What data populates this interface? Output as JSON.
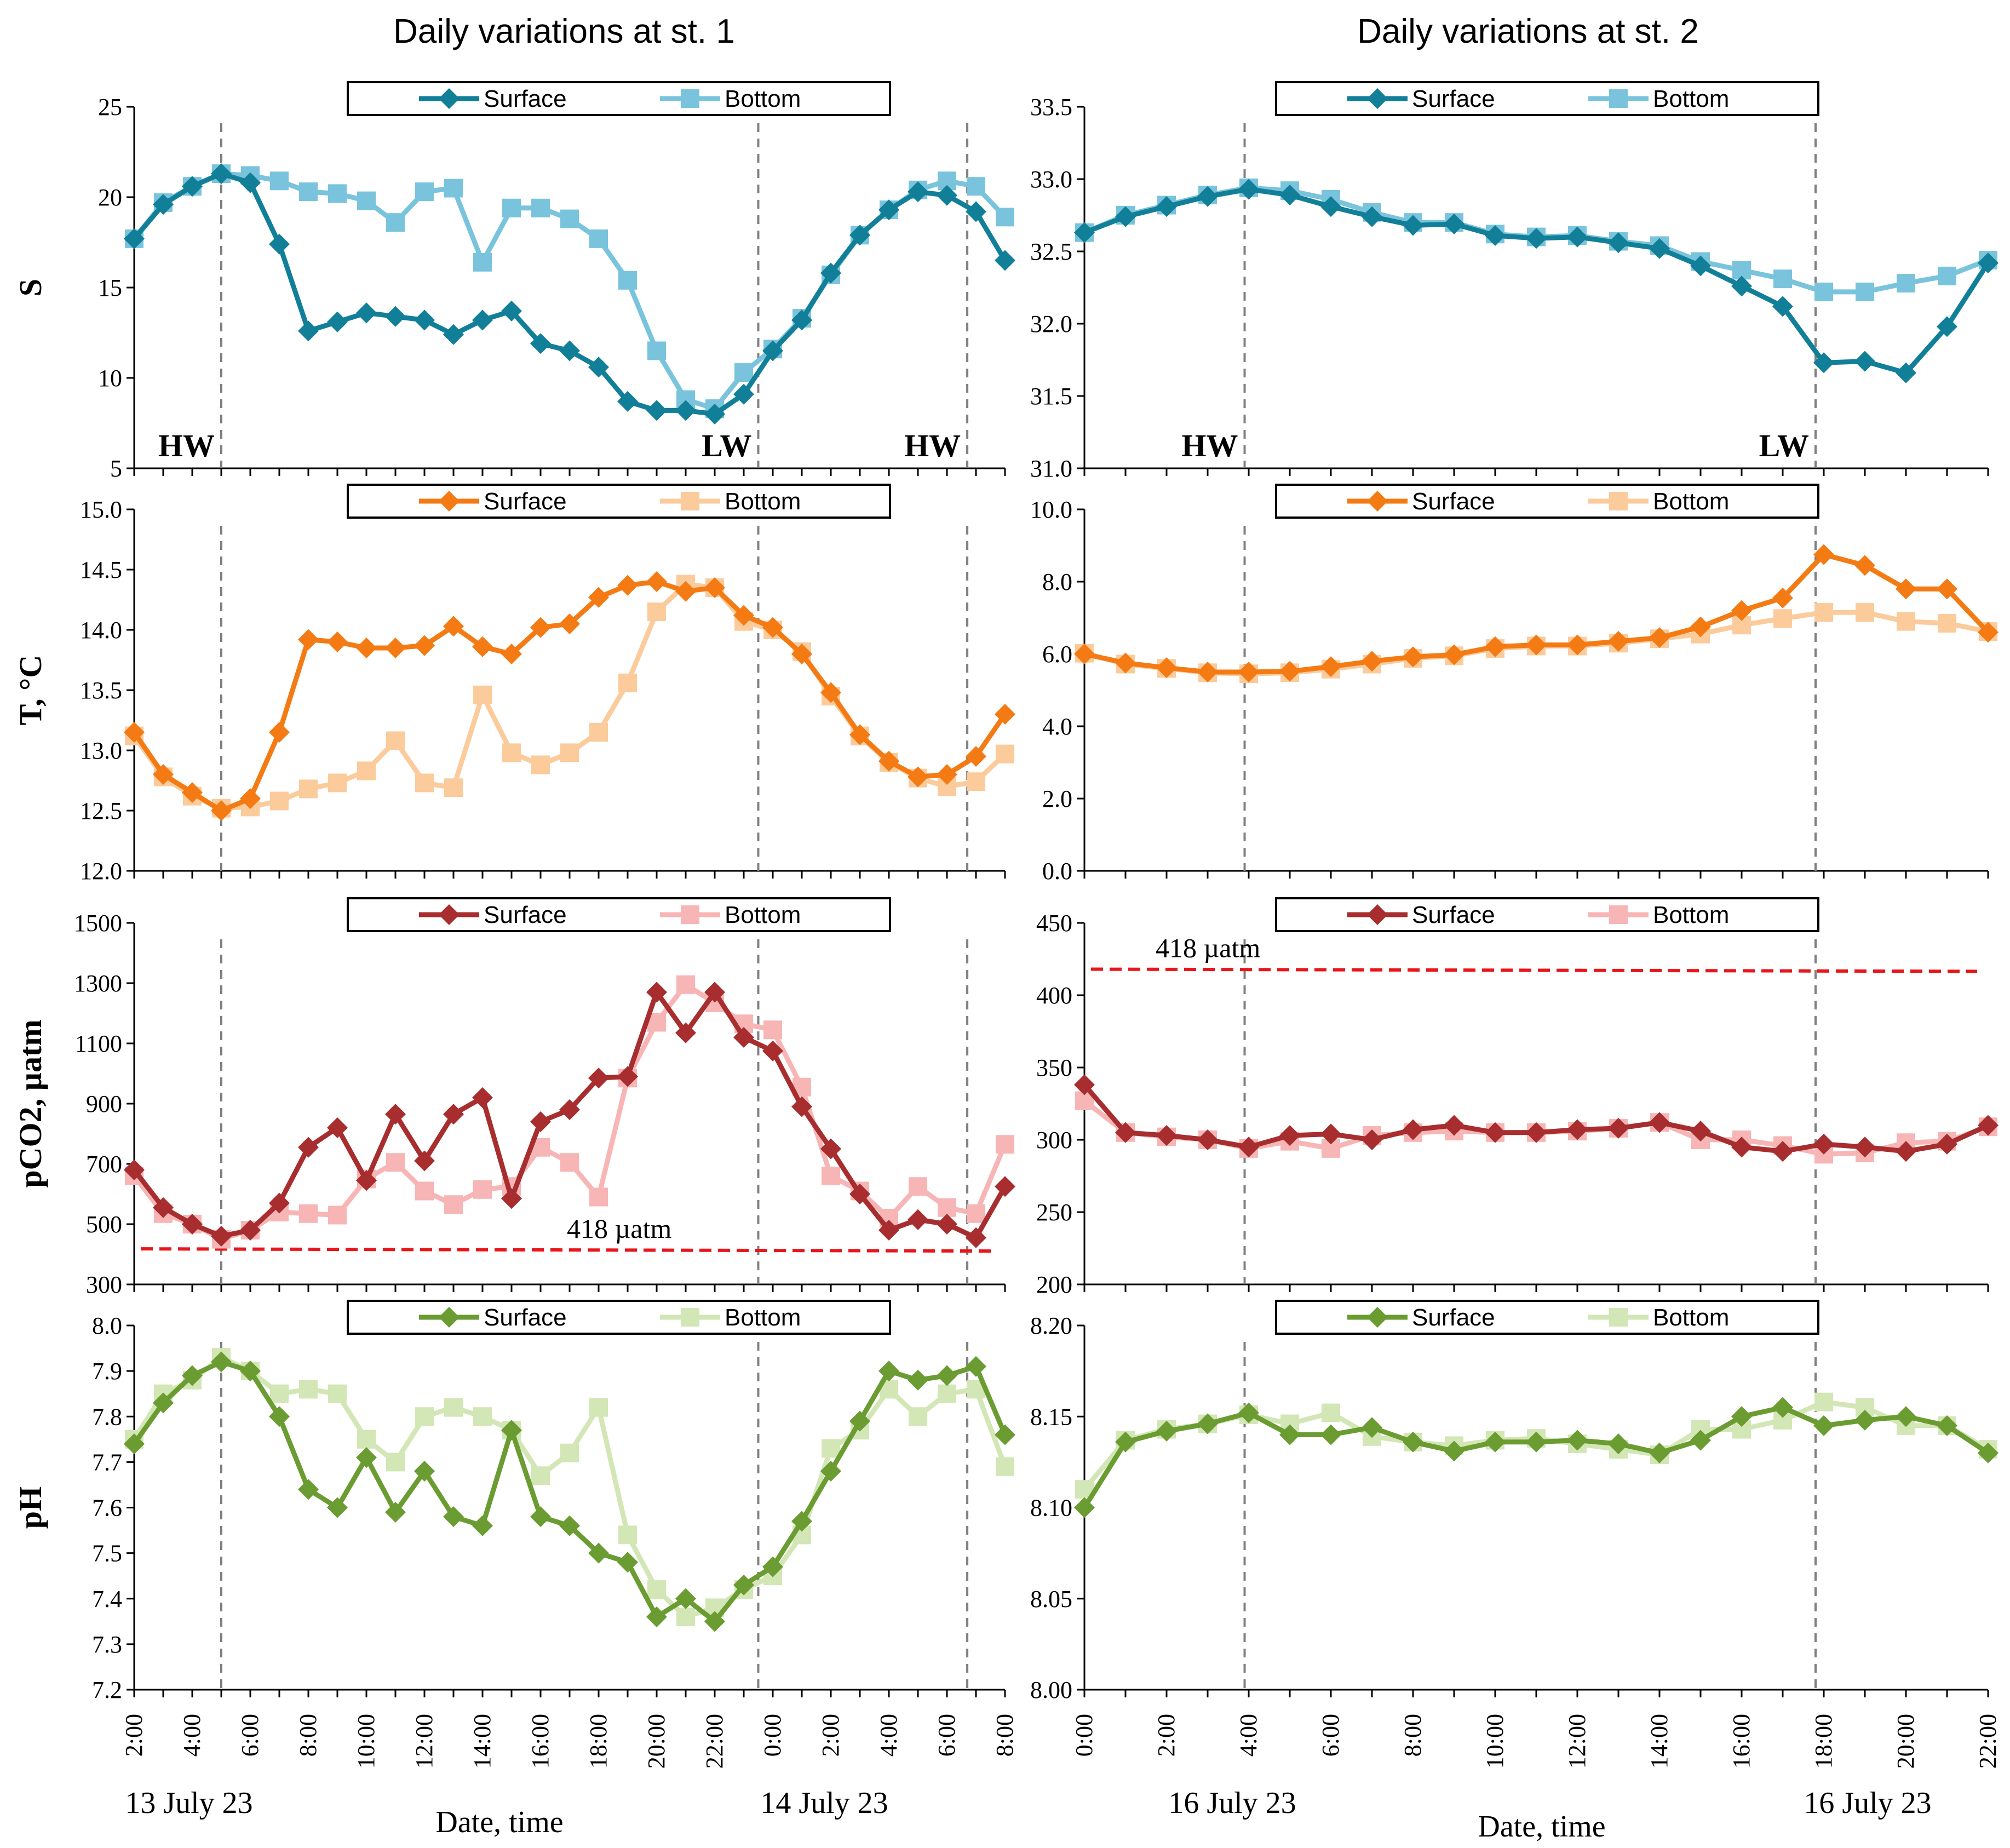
{
  "headers": {
    "st1": "Daily variations at st. 1",
    "st2": "Daily variations at st. 2"
  },
  "footer": {
    "xlabel_left": "Date, time",
    "xlabel_right": "Date, time",
    "date_left_1": "13 July 23",
    "date_left_2": "14 July 23",
    "date_right_1": "16 July 23",
    "date_right_2": "16 July 23"
  },
  "chart_data": [
    {
      "type": "line",
      "station": "st. 1",
      "row": 0,
      "ylabel": "S",
      "ylim": [
        5,
        25
      ],
      "yticks": [
        "5",
        "10",
        "15",
        "20",
        "25"
      ],
      "x": [
        "2:00",
        "3:00",
        "4:00",
        "5:00",
        "6:00",
        "7:00",
        "8:00",
        "9:00",
        "10:00",
        "11:00",
        "12:00",
        "13:00",
        "14:00",
        "15:00",
        "16:00",
        "17:00",
        "18:00",
        "19:00",
        "20:00",
        "21:00",
        "22:00",
        "23:00",
        "0:00",
        "1:00",
        "2:00",
        "3:00",
        "4:00",
        "5:00",
        "6:00",
        "7:00",
        "8:00"
      ],
      "xticks": [
        "2:00",
        "4:00",
        "6:00",
        "8:00",
        "10:00",
        "12:00",
        "14:00",
        "16:00",
        "18:00",
        "20:00",
        "22:00",
        "0:00",
        "2:00",
        "4:00",
        "6:00",
        "8:00"
      ],
      "legend": "top-center",
      "colors": {
        "surface": "#127f99",
        "bottom": "#79c4dc"
      },
      "series": [
        {
          "name": "Surface",
          "marker": "diamond",
          "values": [
            17.7,
            19.6,
            20.6,
            21.3,
            20.8,
            17.4,
            12.6,
            13.1,
            13.6,
            13.4,
            13.2,
            12.4,
            13.2,
            13.7,
            11.9,
            11.5,
            10.6,
            8.7,
            8.2,
            8.2,
            8.0,
            9.1,
            11.5,
            13.2,
            15.8,
            17.9,
            19.3,
            20.3,
            20.1,
            19.2,
            16.5
          ]
        },
        {
          "name": "Bottom",
          "marker": "square",
          "values": [
            17.7,
            19.7,
            20.6,
            21.3,
            21.2,
            20.9,
            20.3,
            20.2,
            19.8,
            18.6,
            20.3,
            20.5,
            16.4,
            19.4,
            19.4,
            18.8,
            17.7,
            15.4,
            11.5,
            8.8,
            8.3,
            10.3,
            11.6,
            13.3,
            15.7,
            17.9,
            19.3,
            20.4,
            20.9,
            20.6,
            18.9
          ]
        }
      ],
      "tide_lines": [
        {
          "x": 3,
          "label": "HW"
        },
        {
          "x": 21.5,
          "label": "LW"
        },
        {
          "x": 28.7,
          "label": "HW"
        }
      ]
    },
    {
      "type": "line",
      "station": "st. 1",
      "row": 1,
      "ylabel": "T, °C",
      "ylim": [
        12.0,
        15.0
      ],
      "yticks": [
        "12.0",
        "12.5",
        "13.0",
        "13.5",
        "14.0",
        "14.5",
        "15.0"
      ],
      "x": [
        "2:00",
        "3:00",
        "4:00",
        "5:00",
        "6:00",
        "7:00",
        "8:00",
        "9:00",
        "10:00",
        "11:00",
        "12:00",
        "13:00",
        "14:00",
        "15:00",
        "16:00",
        "17:00",
        "18:00",
        "19:00",
        "20:00",
        "21:00",
        "22:00",
        "23:00",
        "0:00",
        "1:00",
        "2:00",
        "3:00",
        "4:00",
        "5:00",
        "6:00",
        "7:00",
        "8:00"
      ],
      "legend": "top-center",
      "colors": {
        "surface": "#f47b14",
        "bottom": "#fbcb9b"
      },
      "series": [
        {
          "name": "Surface",
          "marker": "diamond",
          "values": [
            13.15,
            12.8,
            12.65,
            12.5,
            12.6,
            13.15,
            13.92,
            13.9,
            13.85,
            13.85,
            13.87,
            14.03,
            13.86,
            13.8,
            14.02,
            14.05,
            14.27,
            14.37,
            14.4,
            14.32,
            14.35,
            14.12,
            14.02,
            13.8,
            13.48,
            13.13,
            12.91,
            12.78,
            12.8,
            12.95,
            13.3
          ]
        },
        {
          "name": "Bottom",
          "marker": "square",
          "values": [
            13.12,
            12.78,
            12.62,
            12.52,
            12.53,
            12.58,
            12.68,
            12.73,
            12.83,
            13.08,
            12.73,
            12.69,
            13.46,
            12.98,
            12.88,
            12.98,
            13.15,
            13.56,
            14.15,
            14.38,
            14.35,
            14.07,
            14.0,
            13.82,
            13.45,
            13.12,
            12.9,
            12.77,
            12.7,
            12.74,
            12.97
          ]
        }
      ],
      "tide_lines": [
        {
          "x": 3
        },
        {
          "x": 21.5
        },
        {
          "x": 28.7
        }
      ]
    },
    {
      "type": "line",
      "station": "st. 1",
      "row": 2,
      "ylabel": "pCO2, µatm",
      "ylim": [
        300,
        1500
      ],
      "yticks": [
        "300",
        "500",
        "700",
        "900",
        "1100",
        "1300",
        "1500"
      ],
      "x": [
        "2:00",
        "3:00",
        "4:00",
        "5:00",
        "6:00",
        "7:00",
        "8:00",
        "9:00",
        "10:00",
        "11:00",
        "12:00",
        "13:00",
        "14:00",
        "15:00",
        "16:00",
        "17:00",
        "18:00",
        "19:00",
        "20:00",
        "21:00",
        "22:00",
        "23:00",
        "0:00",
        "1:00",
        "2:00",
        "3:00",
        "4:00",
        "5:00",
        "6:00",
        "7:00",
        "8:00"
      ],
      "legend": "top-center",
      "colors": {
        "surface": "#a72d2f",
        "bottom": "#f7b5b5"
      },
      "reference_line": {
        "y": 418,
        "label": "418 µatm",
        "color": "#e8161b"
      },
      "series": [
        {
          "name": "Surface",
          "marker": "diamond",
          "values": [
            680,
            555,
            500,
            460,
            480,
            570,
            755,
            820,
            645,
            865,
            710,
            865,
            920,
            585,
            840,
            880,
            985,
            990,
            1270,
            1135,
            1270,
            1120,
            1075,
            890,
            750,
            600,
            480,
            515,
            500,
            455,
            625
          ]
        },
        {
          "name": "Bottom",
          "marker": "square",
          "values": [
            660,
            535,
            500,
            450,
            480,
            540,
            535,
            530,
            650,
            705,
            610,
            565,
            615,
            625,
            755,
            705,
            590,
            985,
            1170,
            1295,
            1235,
            1165,
            1145,
            955,
            660,
            610,
            520,
            625,
            555,
            535,
            765
          ]
        }
      ],
      "tide_lines": [
        {
          "x": 3
        },
        {
          "x": 21.5
        },
        {
          "x": 28.7
        }
      ]
    },
    {
      "type": "line",
      "station": "st. 1",
      "row": 3,
      "ylabel": "pH",
      "ylim": [
        7.2,
        8.0
      ],
      "yticks": [
        "7.2",
        "7.3",
        "7.4",
        "7.5",
        "7.6",
        "7.7",
        "7.8",
        "7.9",
        "8.0"
      ],
      "x": [
        "2:00",
        "3:00",
        "4:00",
        "5:00",
        "6:00",
        "7:00",
        "8:00",
        "9:00",
        "10:00",
        "11:00",
        "12:00",
        "13:00",
        "14:00",
        "15:00",
        "16:00",
        "17:00",
        "18:00",
        "19:00",
        "20:00",
        "21:00",
        "22:00",
        "23:00",
        "0:00",
        "1:00",
        "2:00",
        "3:00",
        "4:00",
        "5:00",
        "6:00",
        "7:00",
        "8:00"
      ],
      "legend": "top-center",
      "colors": {
        "surface": "#6a9c32",
        "bottom": "#d3e6b5"
      },
      "series": [
        {
          "name": "Surface",
          "marker": "diamond",
          "values": [
            7.74,
            7.83,
            7.89,
            7.92,
            7.9,
            7.8,
            7.64,
            7.6,
            7.71,
            7.59,
            7.68,
            7.58,
            7.56,
            7.77,
            7.58,
            7.56,
            7.5,
            7.48,
            7.36,
            7.4,
            7.35,
            7.43,
            7.47,
            7.57,
            7.68,
            7.79,
            7.9,
            7.88,
            7.89,
            7.91,
            7.76
          ]
        },
        {
          "name": "Bottom",
          "marker": "square",
          "values": [
            7.75,
            7.85,
            7.88,
            7.93,
            7.9,
            7.85,
            7.86,
            7.85,
            7.75,
            7.7,
            7.8,
            7.82,
            7.8,
            7.77,
            7.67,
            7.72,
            7.82,
            7.54,
            7.42,
            7.36,
            7.38,
            7.42,
            7.45,
            7.54,
            7.73,
            7.77,
            7.86,
            7.8,
            7.85,
            7.86,
            7.69
          ]
        }
      ],
      "tide_lines": [
        {
          "x": 3
        },
        {
          "x": 21.5
        },
        {
          "x": 28.7
        }
      ]
    },
    {
      "type": "line",
      "station": "st. 2",
      "row": 0,
      "ylabel": "",
      "ylim": [
        31.0,
        33.5
      ],
      "yticks": [
        "31.0",
        "31.5",
        "32.0",
        "32.5",
        "33.0",
        "33.5"
      ],
      "x": [
        "0:00",
        "1:00",
        "2:00",
        "3:00",
        "4:00",
        "5:00",
        "6:00",
        "7:00",
        "8:00",
        "9:00",
        "10:00",
        "11:00",
        "12:00",
        "13:00",
        "14:00",
        "15:00",
        "16:00",
        "17:00",
        "18:00",
        "19:00",
        "20:00",
        "21:00",
        "22:00"
      ],
      "xticks": [
        "0:00",
        "2:00",
        "4:00",
        "6:00",
        "8:00",
        "10:00",
        "12:00",
        "14:00",
        "16:00",
        "18:00",
        "20:00",
        "22:00"
      ],
      "legend": "top-center",
      "colors": {
        "surface": "#127f99",
        "bottom": "#79c4dc"
      },
      "series": [
        {
          "name": "Surface",
          "marker": "diamond",
          "values": [
            32.63,
            32.74,
            32.81,
            32.88,
            32.93,
            32.89,
            32.81,
            32.74,
            32.68,
            32.69,
            32.61,
            32.59,
            32.6,
            32.56,
            32.52,
            32.4,
            32.26,
            32.12,
            31.73,
            31.74,
            31.66,
            31.98,
            32.42
          ]
        },
        {
          "name": "Bottom",
          "marker": "square",
          "values": [
            32.63,
            32.75,
            32.82,
            32.89,
            32.94,
            32.92,
            32.86,
            32.77,
            32.7,
            32.7,
            32.62,
            32.6,
            32.61,
            32.57,
            32.54,
            32.43,
            32.37,
            32.31,
            32.22,
            32.22,
            32.28,
            32.33,
            32.44
          ]
        }
      ],
      "tide_lines": [
        {
          "x": 3.9,
          "label": "HW"
        },
        {
          "x": 17.8,
          "label": "LW"
        }
      ]
    },
    {
      "type": "line",
      "station": "st. 2",
      "row": 1,
      "ylabel": "",
      "ylim": [
        0,
        10
      ],
      "yticks": [
        "0.0",
        "2.0",
        "4.0",
        "6.0",
        "8.0",
        "10.0"
      ],
      "x": [
        "0:00",
        "1:00",
        "2:00",
        "3:00",
        "4:00",
        "5:00",
        "6:00",
        "7:00",
        "8:00",
        "9:00",
        "10:00",
        "11:00",
        "12:00",
        "13:00",
        "14:00",
        "15:00",
        "16:00",
        "17:00",
        "18:00",
        "19:00",
        "20:00",
        "21:00",
        "22:00"
      ],
      "legend": "top-center",
      "colors": {
        "surface": "#f47b14",
        "bottom": "#fbcb9b"
      },
      "series": [
        {
          "name": "Surface",
          "marker": "diamond",
          "values": [
            6.0,
            5.75,
            5.62,
            5.5,
            5.5,
            5.52,
            5.65,
            5.8,
            5.92,
            5.98,
            6.2,
            6.25,
            6.25,
            6.35,
            6.45,
            6.75,
            7.2,
            7.55,
            8.75,
            8.45,
            7.8,
            7.8,
            6.6
          ]
        },
        {
          "name": "Bottom",
          "marker": "square",
          "values": [
            6.02,
            5.72,
            5.6,
            5.48,
            5.45,
            5.48,
            5.58,
            5.72,
            5.88,
            5.95,
            6.15,
            6.22,
            6.22,
            6.3,
            6.42,
            6.55,
            6.8,
            6.98,
            7.15,
            7.15,
            6.9,
            6.85,
            6.62
          ]
        }
      ],
      "tide_lines": [
        {
          "x": 3.9
        },
        {
          "x": 17.8
        }
      ]
    },
    {
      "type": "line",
      "station": "st. 2",
      "row": 2,
      "ylabel": "",
      "ylim": [
        200,
        450
      ],
      "yticks": [
        "200",
        "250",
        "300",
        "350",
        "400",
        "450"
      ],
      "x": [
        "0:00",
        "1:00",
        "2:00",
        "3:00",
        "4:00",
        "5:00",
        "6:00",
        "7:00",
        "8:00",
        "9:00",
        "10:00",
        "11:00",
        "12:00",
        "13:00",
        "14:00",
        "15:00",
        "16:00",
        "17:00",
        "18:00",
        "19:00",
        "20:00",
        "21:00",
        "22:00"
      ],
      "legend": "top-center",
      "colors": {
        "surface": "#a72d2f",
        "bottom": "#f7b5b5"
      },
      "reference_line": {
        "y": 418,
        "label": "418 µatm",
        "color": "#e8161b"
      },
      "series": [
        {
          "name": "Surface",
          "marker": "diamond",
          "values": [
            338,
            305,
            303,
            300,
            295,
            303,
            304,
            300,
            307,
            310,
            305,
            305,
            307,
            308,
            312,
            306,
            295,
            292,
            297,
            295,
            292,
            297,
            310
          ]
        },
        {
          "name": "Bottom",
          "marker": "square",
          "values": [
            327,
            305,
            302,
            300,
            294,
            299,
            294,
            303,
            305,
            306,
            305,
            305,
            306,
            308,
            312,
            300,
            300,
            296,
            290,
            291,
            298,
            299,
            309
          ]
        }
      ],
      "tide_lines": [
        {
          "x": 3.9
        },
        {
          "x": 17.8
        }
      ]
    },
    {
      "type": "line",
      "station": "st. 2",
      "row": 3,
      "ylabel": "",
      "ylim": [
        8.0,
        8.2
      ],
      "yticks": [
        "8.00",
        "8.05",
        "8.10",
        "8.15",
        "8.20"
      ],
      "x": [
        "0:00",
        "1:00",
        "2:00",
        "3:00",
        "4:00",
        "5:00",
        "6:00",
        "7:00",
        "8:00",
        "9:00",
        "10:00",
        "11:00",
        "12:00",
        "13:00",
        "14:00",
        "15:00",
        "16:00",
        "17:00",
        "18:00",
        "19:00",
        "20:00",
        "21:00",
        "22:00"
      ],
      "legend": "top-center",
      "colors": {
        "surface": "#6a9c32",
        "bottom": "#d3e6b5"
      },
      "series": [
        {
          "name": "Surface",
          "marker": "diamond",
          "values": [
            8.1,
            8.136,
            8.142,
            8.146,
            8.152,
            8.14,
            8.14,
            8.144,
            8.136,
            8.131,
            8.136,
            8.136,
            8.137,
            8.135,
            8.13,
            8.137,
            8.15,
            8.155,
            8.145,
            8.148,
            8.15,
            8.145,
            8.13
          ]
        },
        {
          "name": "Bottom",
          "marker": "square",
          "values": [
            8.11,
            8.137,
            8.143,
            8.146,
            8.151,
            8.146,
            8.152,
            8.139,
            8.136,
            8.134,
            8.137,
            8.138,
            8.135,
            8.132,
            8.129,
            8.143,
            8.143,
            8.148,
            8.158,
            8.155,
            8.145,
            8.145,
            8.132
          ]
        }
      ],
      "tide_lines": [
        {
          "x": 3.9
        },
        {
          "x": 17.8
        }
      ]
    }
  ]
}
